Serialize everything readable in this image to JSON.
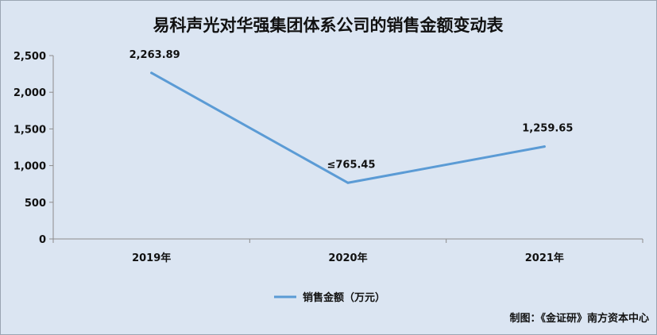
{
  "chart_data": {
    "type": "line",
    "title": "易科声光对华强集团体系公司的销售金额变动表",
    "categories": [
      "2019年",
      "2020年",
      "2021年"
    ],
    "series": [
      {
        "name": "销售金额（万元）",
        "values": [
          2263.89,
          765.45,
          1259.65
        ],
        "labels": [
          "2,263.89",
          "≤765.45",
          "1,259.65"
        ],
        "color": "#5b9bd5"
      }
    ],
    "ylim": [
      0,
      2500
    ],
    "yticks": [
      0,
      500,
      1000,
      1500,
      2000,
      2500
    ],
    "ytick_labels": [
      "0",
      "500",
      "1,000",
      "1,500",
      "2,000",
      "2,500"
    ],
    "xlabel": "",
    "ylabel": "",
    "grid": false,
    "legend_position": "bottom"
  },
  "source_note": "制图：《金证研》南方资本中心"
}
